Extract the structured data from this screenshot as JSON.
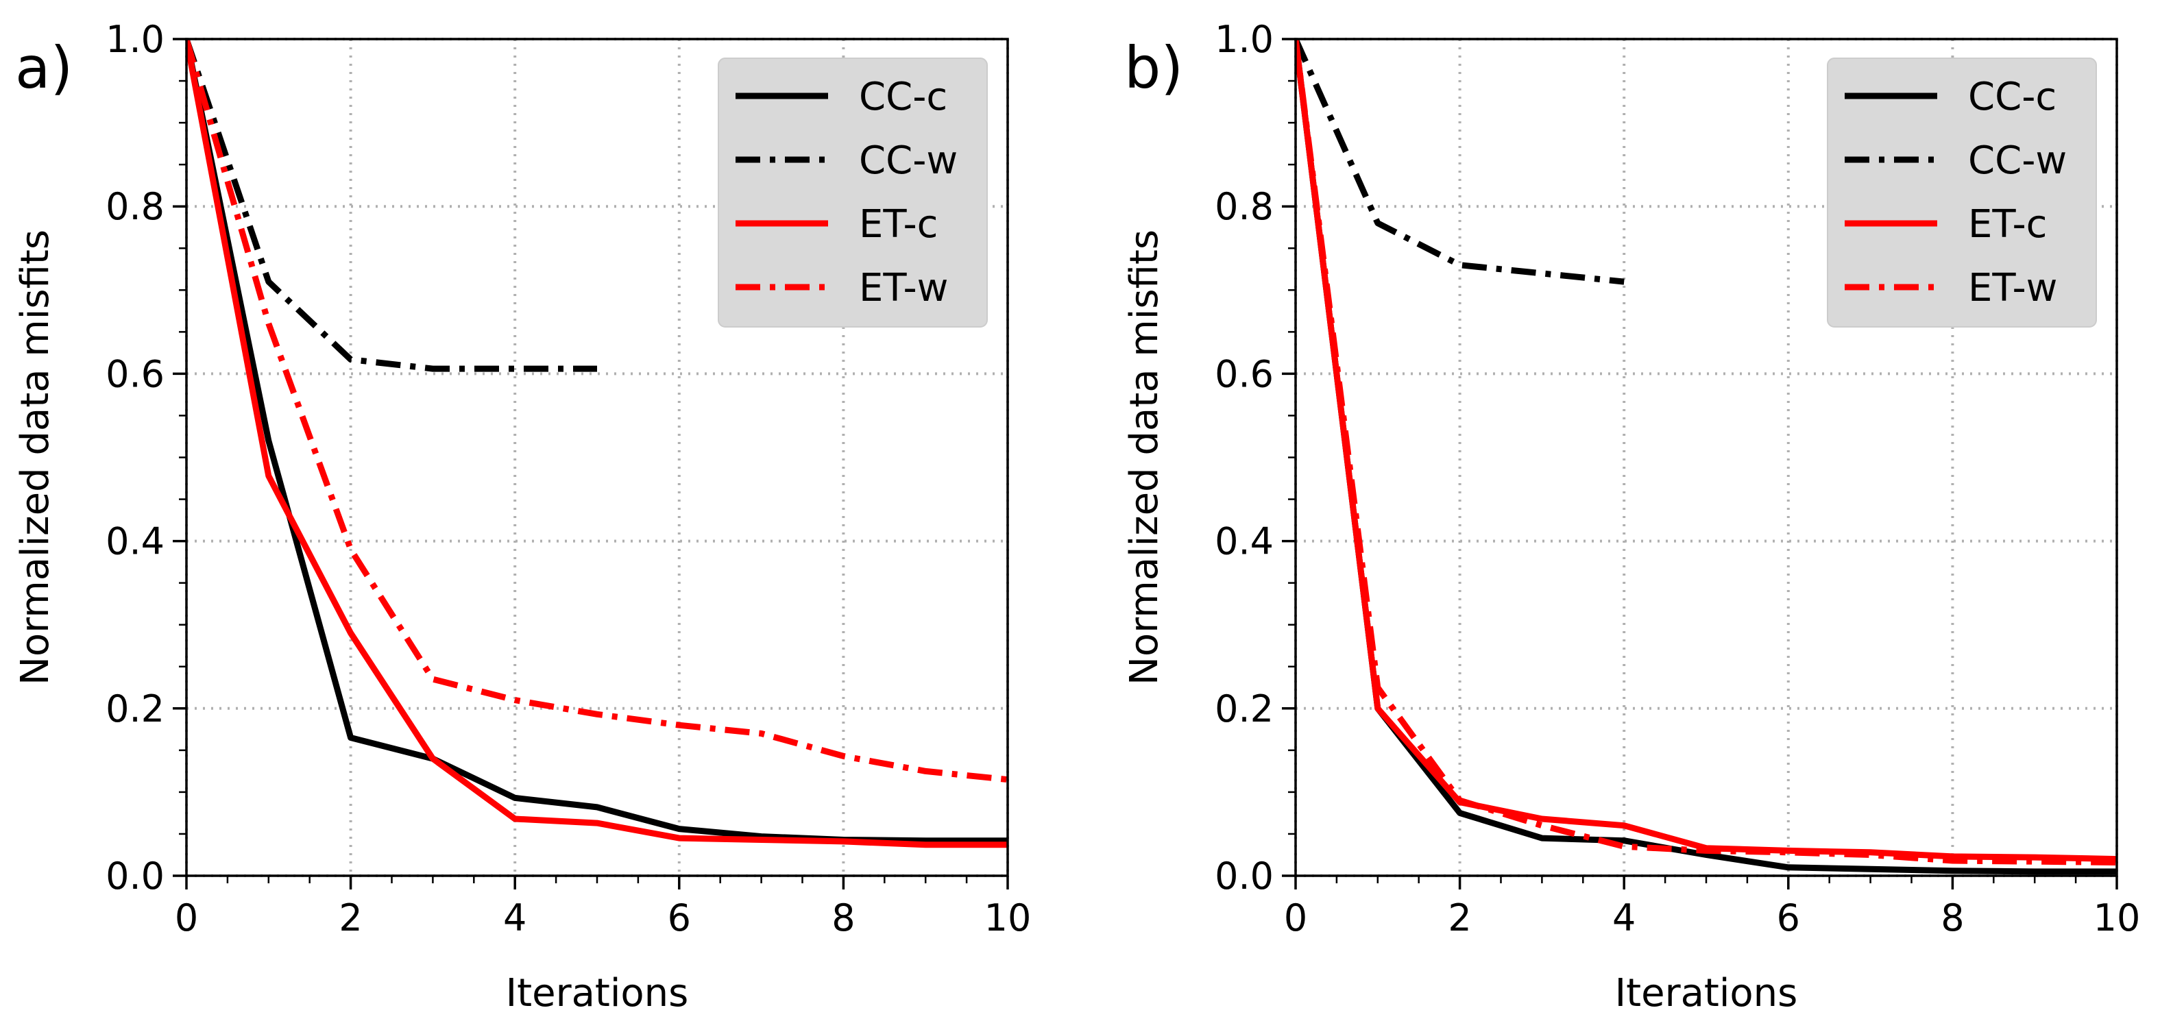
{
  "style": {
    "colors": {
      "black": "#000000",
      "red": "#ff0000",
      "grid": "#b0b0b0",
      "legend_bg": "#d9d9d9"
    }
  },
  "chart_data": [
    {
      "type": "line",
      "panel_label": "a)",
      "xlabel": "Iterations",
      "ylabel": "Normalized data misfits",
      "xlim": [
        0,
        10
      ],
      "ylim": [
        0,
        1
      ],
      "xticks": [
        0,
        2,
        4,
        6,
        8,
        10
      ],
      "xtick_labels": [
        "0",
        "2",
        "4",
        "6",
        "8",
        "10"
      ],
      "yticks": [
        0,
        0.2,
        0.4,
        0.6,
        0.8,
        1.0
      ],
      "ytick_labels": [
        "0.0",
        "0.2",
        "0.4",
        "0.6",
        "0.8",
        "1.0"
      ],
      "grid": true,
      "legend_position": "top-right",
      "series": [
        {
          "name": "CC-c",
          "color": "#000000",
          "dash": "solid",
          "x": [
            0,
            1,
            2,
            3,
            4,
            5,
            6,
            7,
            8,
            9,
            10
          ],
          "y": [
            1.0,
            0.52,
            0.165,
            0.14,
            0.093,
            0.082,
            0.056,
            0.047,
            0.043,
            0.042,
            0.042
          ]
        },
        {
          "name": "CC-w",
          "color": "#000000",
          "dash": "dashdot",
          "x": [
            0,
            1,
            2,
            3,
            4,
            5
          ],
          "y": [
            1.0,
            0.71,
            0.617,
            0.606,
            0.606,
            0.606
          ]
        },
        {
          "name": "ET-c",
          "color": "#ff0000",
          "dash": "solid",
          "x": [
            0,
            1,
            2,
            3,
            4,
            5,
            6,
            7,
            8,
            9,
            10
          ],
          "y": [
            1.0,
            0.478,
            0.29,
            0.14,
            0.068,
            0.063,
            0.045,
            0.043,
            0.041,
            0.037,
            0.037
          ]
        },
        {
          "name": "ET-w",
          "color": "#ff0000",
          "dash": "dashdot",
          "x": [
            0,
            1,
            2,
            3,
            4,
            5,
            6,
            7,
            8,
            9,
            10
          ],
          "y": [
            1.0,
            0.66,
            0.39,
            0.235,
            0.21,
            0.193,
            0.18,
            0.17,
            0.143,
            0.125,
            0.115
          ]
        }
      ]
    },
    {
      "type": "line",
      "panel_label": "b)",
      "xlabel": "Iterations",
      "ylabel": "Normalized data misfits",
      "xlim": [
        0,
        10
      ],
      "ylim": [
        0,
        1
      ],
      "xticks": [
        0,
        2,
        4,
        6,
        8,
        10
      ],
      "xtick_labels": [
        "0",
        "2",
        "4",
        "6",
        "8",
        "10"
      ],
      "yticks": [
        0,
        0.2,
        0.4,
        0.6,
        0.8,
        1.0
      ],
      "ytick_labels": [
        "0.0",
        "0.2",
        "0.4",
        "0.6",
        "0.8",
        "1.0"
      ],
      "grid": true,
      "legend_position": "top-right",
      "series": [
        {
          "name": "CC-c",
          "color": "#000000",
          "dash": "solid",
          "x": [
            0,
            1,
            2,
            3,
            4,
            5,
            6,
            7,
            8,
            9,
            10
          ],
          "y": [
            1.0,
            0.2,
            0.075,
            0.045,
            0.042,
            0.025,
            0.01,
            0.008,
            0.006,
            0.005,
            0.005
          ]
        },
        {
          "name": "CC-w",
          "color": "#000000",
          "dash": "dashdot",
          "x": [
            0,
            1,
            2,
            3,
            4
          ],
          "y": [
            1.0,
            0.78,
            0.73,
            0.72,
            0.71
          ]
        },
        {
          "name": "ET-c",
          "color": "#ff0000",
          "dash": "solid",
          "x": [
            0,
            1,
            2,
            3,
            4,
            5,
            6,
            7,
            8,
            9,
            10
          ],
          "y": [
            1.0,
            0.2,
            0.088,
            0.068,
            0.06,
            0.033,
            0.03,
            0.028,
            0.023,
            0.022,
            0.02
          ]
        },
        {
          "name": "ET-w",
          "color": "#ff0000",
          "dash": "dashdot",
          "x": [
            0,
            1,
            2,
            3,
            4,
            5,
            6,
            7,
            8,
            9,
            10
          ],
          "y": [
            1.0,
            0.225,
            0.09,
            0.06,
            0.035,
            0.03,
            0.028,
            0.025,
            0.018,
            0.017,
            0.016
          ]
        }
      ]
    }
  ]
}
